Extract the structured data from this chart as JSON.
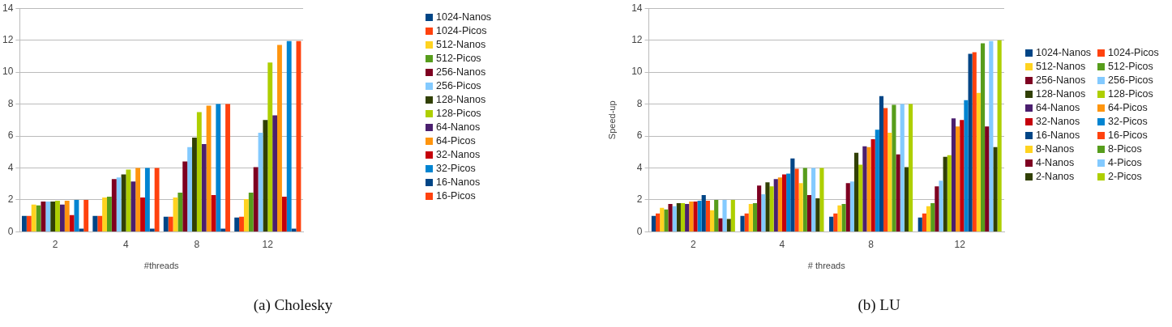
{
  "chart_data": [
    {
      "type": "bar",
      "title": "(a) Cholesky",
      "xlabel": "#threads",
      "categories": [
        "2",
        "4",
        "8",
        "12"
      ],
      "ylim": [
        0,
        14
      ],
      "yticks": [
        0,
        2,
        4,
        6,
        8,
        10,
        12,
        14
      ],
      "grid": "y",
      "legend": "right",
      "series": [
        {
          "name": "1024-Nanos",
          "color": "#004586",
          "values": [
            1.0,
            1.0,
            0.95,
            0.9
          ]
        },
        {
          "name": "1024-Picos",
          "color": "#ff420e",
          "values": [
            1.0,
            1.0,
            0.95,
            0.95
          ]
        },
        {
          "name": "512-Nanos",
          "color": "#ffd320",
          "values": [
            1.7,
            2.15,
            2.15,
            2.05
          ]
        },
        {
          "name": "512-Picos",
          "color": "#579d1c",
          "values": [
            1.65,
            2.2,
            2.45,
            2.45
          ]
        },
        {
          "name": "256-Nanos",
          "color": "#7e0021",
          "values": [
            1.9,
            3.3,
            4.4,
            4.05
          ]
        },
        {
          "name": "256-Picos",
          "color": "#83caff",
          "values": [
            1.9,
            3.4,
            5.3,
            6.2
          ]
        },
        {
          "name": "128-Nanos",
          "color": "#314004",
          "values": [
            1.9,
            3.6,
            5.9,
            7.0
          ]
        },
        {
          "name": "128-Picos",
          "color": "#aecf00",
          "values": [
            1.95,
            3.9,
            7.5,
            10.6
          ]
        },
        {
          "name": "64-Nanos",
          "color": "#4b1f6f",
          "values": [
            1.7,
            3.15,
            5.5,
            7.3
          ]
        },
        {
          "name": "64-Picos",
          "color": "#ff950e",
          "values": [
            1.95,
            4.0,
            7.9,
            11.7
          ]
        },
        {
          "name": "32-Nanos",
          "color": "#c5000b",
          "values": [
            1.05,
            2.15,
            2.3,
            2.2
          ]
        },
        {
          "name": "32-Picos",
          "color": "#0084d1",
          "values": [
            2.0,
            4.0,
            8.0,
            11.95
          ]
        },
        {
          "name": "16-Nanos",
          "color": "#004586",
          "values": [
            0.2,
            0.2,
            0.2,
            0.2
          ]
        },
        {
          "name": "16-Picos",
          "color": "#ff420e",
          "values": [
            2.0,
            4.0,
            8.0,
            11.95
          ]
        }
      ]
    },
    {
      "type": "bar",
      "title": "(b) LU",
      "xlabel": "# threads",
      "ylabel": "Speed-up",
      "categories": [
        "2",
        "4",
        "8",
        "12"
      ],
      "ylim": [
        0,
        14
      ],
      "yticks": [
        0,
        2,
        4,
        6,
        8,
        10,
        12,
        14
      ],
      "grid": "y",
      "legend": "right",
      "series": [
        {
          "name": "1024-Nanos",
          "color": "#004586",
          "values": [
            1.0,
            1.0,
            0.95,
            0.9
          ]
        },
        {
          "name": "1024-Picos",
          "color": "#ff420e",
          "values": [
            1.15,
            1.15,
            1.15,
            1.15
          ]
        },
        {
          "name": "512-Nanos",
          "color": "#ffd320",
          "values": [
            1.5,
            1.75,
            1.65,
            1.6
          ]
        },
        {
          "name": "512-Picos",
          "color": "#579d1c",
          "values": [
            1.4,
            1.8,
            1.75,
            1.8
          ]
        },
        {
          "name": "256-Nanos",
          "color": "#7e0021",
          "values": [
            1.75,
            2.9,
            3.05,
            2.85
          ]
        },
        {
          "name": "256-Picos",
          "color": "#83caff",
          "values": [
            1.6,
            2.35,
            3.15,
            3.2
          ]
        },
        {
          "name": "128-Nanos",
          "color": "#314004",
          "values": [
            1.8,
            3.1,
            4.95,
            4.7
          ]
        },
        {
          "name": "128-Picos",
          "color": "#aecf00",
          "values": [
            1.8,
            2.85,
            4.2,
            4.8
          ]
        },
        {
          "name": "64-Nanos",
          "color": "#4b1f6f",
          "values": [
            1.75,
            3.3,
            5.35,
            7.1
          ]
        },
        {
          "name": "64-Picos",
          "color": "#ff950e",
          "values": [
            1.9,
            3.4,
            5.3,
            6.6
          ]
        },
        {
          "name": "32-Nanos",
          "color": "#c5000b",
          "values": [
            1.9,
            3.6,
            5.8,
            7.0
          ]
        },
        {
          "name": "32-Picos",
          "color": "#0084d1",
          "values": [
            1.95,
            3.65,
            6.4,
            8.25
          ]
        },
        {
          "name": "16-Nanos",
          "color": "#004586",
          "values": [
            2.3,
            4.6,
            8.5,
            11.15
          ]
        },
        {
          "name": "16-Picos",
          "color": "#ff420e",
          "values": [
            1.95,
            3.95,
            7.75,
            11.25
          ]
        },
        {
          "name": "8-Nanos",
          "color": "#ffd320",
          "values": [
            1.35,
            3.05,
            6.2,
            8.7
          ]
        },
        {
          "name": "8-Picos",
          "color": "#579d1c",
          "values": [
            2.0,
            4.0,
            7.95,
            11.8
          ]
        },
        {
          "name": "4-Nanos",
          "color": "#7e0021",
          "values": [
            0.85,
            2.3,
            4.85,
            6.6
          ]
        },
        {
          "name": "4-Picos",
          "color": "#83caff",
          "values": [
            2.0,
            4.0,
            8.0,
            11.95
          ]
        },
        {
          "name": "2-Nanos",
          "color": "#314004",
          "values": [
            0.8,
            2.1,
            4.05,
            5.3
          ]
        },
        {
          "name": "2-Picos",
          "color": "#aecf00",
          "values": [
            2.0,
            4.0,
            8.0,
            12.0
          ]
        }
      ]
    }
  ]
}
